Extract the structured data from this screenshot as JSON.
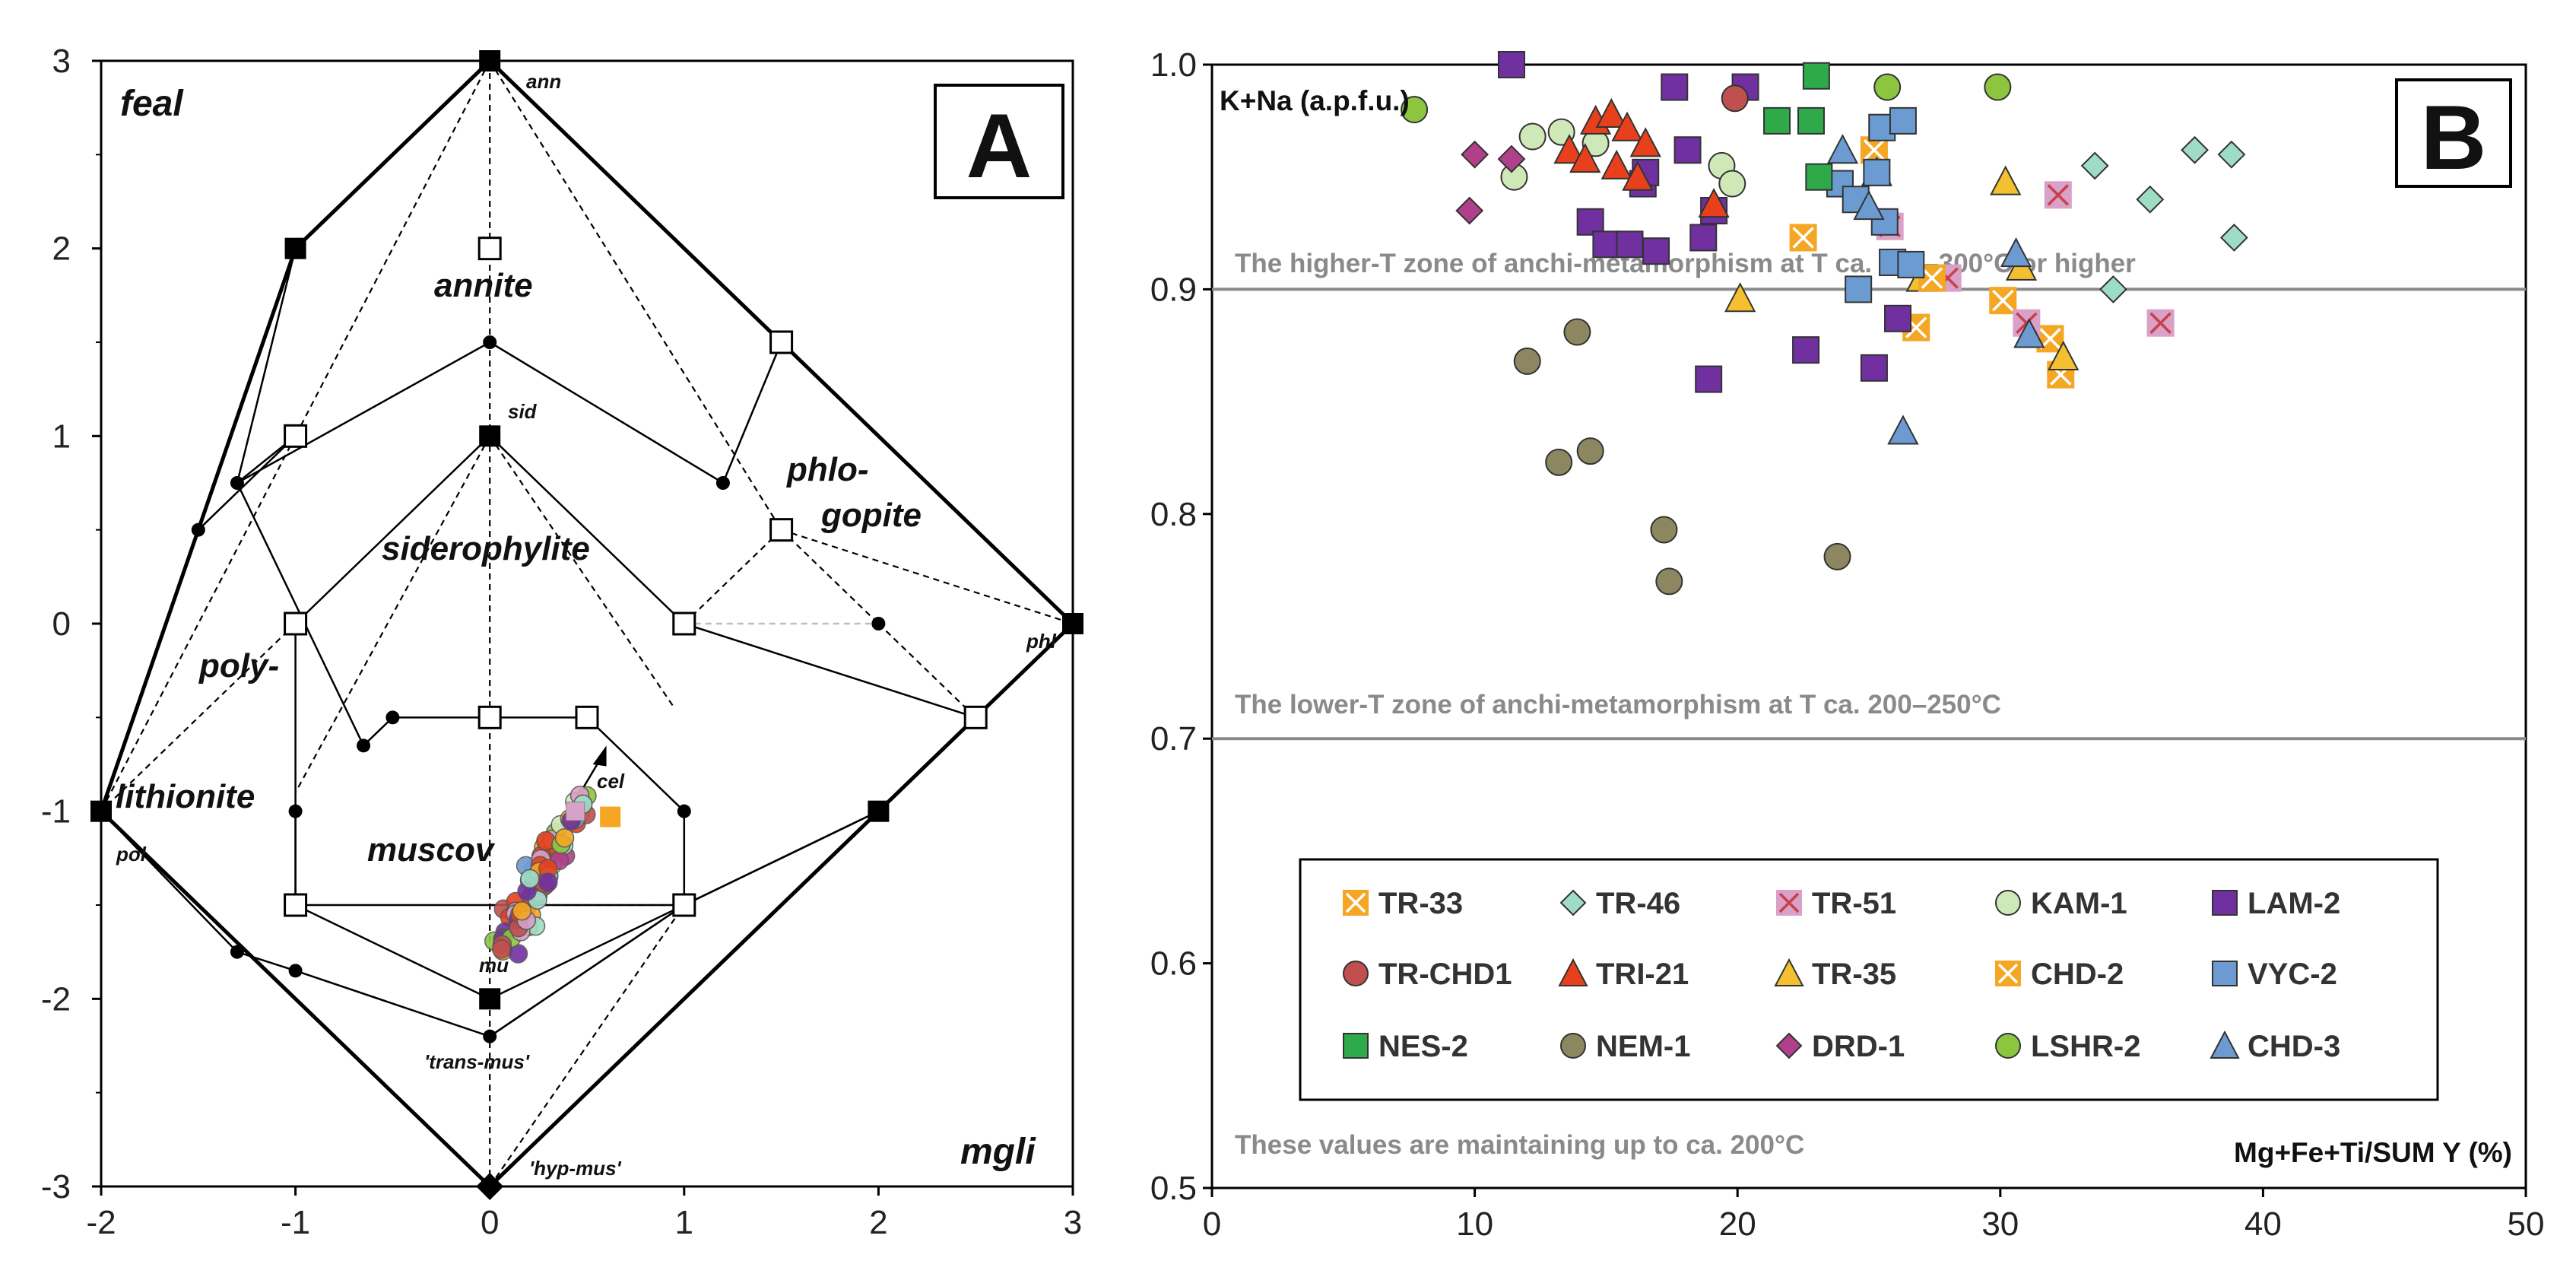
{
  "panel_a": {
    "label": "A",
    "corner_labels": {
      "feal": "feal",
      "mgli": "mgli"
    },
    "mineral_labels": {
      "annite": "annite",
      "siderophylite": "siderophylite",
      "phlogopite_1": "phlo-",
      "phlogopite_2": "gopite",
      "polylithionite_1": "poly-",
      "polylithionite_2": "lithionite",
      "muscovite": "muscov"
    },
    "endmember_labels": {
      "ann": "ann",
      "sid": "sid",
      "phl": "phl",
      "pol": "pol",
      "cel": "cel",
      "mu": "mu",
      "trans_mus": "'trans-mus'",
      "hyp_mus": "'hyp-mus'"
    }
  },
  "panel_b": {
    "label": "B",
    "ylabel": "K+Na (a.p.f.u.)",
    "xlabel": "Mg+Fe+Ti/SUM Y (%)",
    "zone_high": "The higher-T zone of anchi-metamorphism at T ca. 250–300°C or higher",
    "zone_low": "The lower-T zone of anchi-metamorphism at T ca. 200–250°C",
    "zone_base": "These values are maintaining up to ca. 200°C"
  },
  "chart_data": [
    {
      "type": "scatter",
      "title": "A",
      "xlabel": "",
      "ylabel": "",
      "xlim": [
        -2,
        3
      ],
      "ylim": [
        -3,
        3
      ],
      "xticks": [
        -2,
        -1,
        0,
        1,
        2,
        3
      ],
      "yticks": [
        3,
        2,
        1,
        0,
        -1,
        -2,
        -3
      ],
      "endmembers": [
        {
          "name": "ann",
          "x": 0,
          "y": 3
        },
        {
          "name": "sid",
          "x": 0,
          "y": 1
        },
        {
          "name": "phl",
          "x": 3,
          "y": 0
        },
        {
          "name": "pol",
          "x": -2,
          "y": -1
        },
        {
          "name": "mu",
          "x": 0,
          "y": -2
        },
        {
          "name": "hyp-mus",
          "x": 0,
          "y": -3
        }
      ],
      "sample_cluster": {
        "description": "muscovite compositions",
        "x_range": [
          0.05,
          0.65
        ],
        "y_range": [
          -1.8,
          -0.85
        ]
      }
    },
    {
      "type": "scatter",
      "title": "B",
      "xlabel": "Mg+Fe+Ti/SUM Y (%)",
      "ylabel": "K+Na (a.p.f.u.)",
      "xlim": [
        0,
        50
      ],
      "ylim": [
        0.5,
        1.0
      ],
      "xticks": [
        0,
        10,
        20,
        30,
        40,
        50
      ],
      "yticks": [
        1.0,
        0.9,
        0.8,
        0.7,
        0.6,
        0.5
      ],
      "hlines": [
        0.9,
        0.7
      ],
      "legend_position": "bottom-right inside",
      "series": [
        {
          "name": "TR-33",
          "marker": "xsquare",
          "color": "#f5a623",
          "points": [
            [
              22.5,
              0.923
            ],
            [
              25.2,
              0.962
            ],
            [
              26.8,
              0.883
            ],
            [
              30.1,
              0.895
            ],
            [
              31.9,
              0.878
            ],
            [
              32.3,
              0.862
            ]
          ]
        },
        {
          "name": "TR-46",
          "marker": "diamond",
          "color": "#9fdcc6",
          "points": [
            [
              33.6,
              0.955
            ],
            [
              34.3,
              0.9
            ],
            [
              35.7,
              0.94
            ],
            [
              37.4,
              0.962
            ],
            [
              38.8,
              0.96
            ],
            [
              38.9,
              0.923
            ]
          ]
        },
        {
          "name": "TR-51",
          "marker": "xsquare",
          "color": "#d9a0c8",
          "points": [
            [
              25.8,
              0.928
            ],
            [
              28.0,
              0.905
            ],
            [
              31.0,
              0.885
            ],
            [
              32.2,
              0.942
            ],
            [
              36.1,
              0.885
            ]
          ]
        },
        {
          "name": "KAM-1",
          "marker": "circle",
          "color": "#cfe8b8",
          "points": [
            [
              11.5,
              0.95
            ],
            [
              12.2,
              0.968
            ],
            [
              13.3,
              0.97
            ],
            [
              14.6,
              0.965
            ],
            [
              19.4,
              0.955
            ],
            [
              19.8,
              0.947
            ]
          ]
        },
        {
          "name": "LAM-2",
          "marker": "square",
          "color": "#7030a0",
          "points": [
            [
              11.4,
              1.0
            ],
            [
              14.4,
              0.93
            ],
            [
              15.0,
              0.92
            ],
            [
              15.9,
              0.92
            ],
            [
              16.4,
              0.947
            ],
            [
              16.5,
              0.952
            ],
            [
              16.9,
              0.917
            ],
            [
              17.6,
              0.99
            ],
            [
              18.1,
              0.962
            ],
            [
              18.7,
              0.923
            ],
            [
              19.1,
              0.935
            ],
            [
              20.3,
              0.99
            ],
            [
              18.9,
              0.86
            ],
            [
              22.6,
              0.873
            ],
            [
              25.2,
              0.865
            ],
            [
              26.1,
              0.887
            ]
          ]
        },
        {
          "name": "TR-CHD1",
          "marker": "circle",
          "color": "#c0504d",
          "points": [
            [
              19.9,
              0.985
            ]
          ]
        },
        {
          "name": "TRI-21",
          "marker": "triangle",
          "color": "#e8401c",
          "points": [
            [
              13.6,
              0.962
            ],
            [
              14.2,
              0.958
            ],
            [
              14.6,
              0.975
            ],
            [
              15.2,
              0.978
            ],
            [
              15.4,
              0.955
            ],
            [
              15.8,
              0.972
            ],
            [
              16.2,
              0.95
            ],
            [
              16.5,
              0.965
            ],
            [
              19.1,
              0.938
            ]
          ]
        },
        {
          "name": "TR-35",
          "marker": "triangle",
          "color": "#f5c030",
          "points": [
            [
              20.1,
              0.896
            ],
            [
              25.3,
              0.952
            ],
            [
              27.0,
              0.905
            ],
            [
              30.2,
              0.948
            ],
            [
              30.8,
              0.91
            ],
            [
              32.4,
              0.87
            ]
          ]
        },
        {
          "name": "CHD-2",
          "marker": "xsquare",
          "color": "#f5a623",
          "points": [
            [
              27.4,
              0.905
            ]
          ]
        },
        {
          "name": "VYC-2",
          "marker": "square",
          "color": "#6c9bd2",
          "points": [
            [
              23.9,
              0.947
            ],
            [
              24.5,
              0.94
            ],
            [
              25.3,
              0.952
            ],
            [
              25.5,
              0.972
            ],
            [
              26.3,
              0.975
            ],
            [
              24.6,
              0.9
            ],
            [
              25.6,
              0.93
            ],
            [
              25.9,
              0.912
            ],
            [
              26.6,
              0.911
            ]
          ]
        },
        {
          "name": "NES-2",
          "marker": "square",
          "color": "#2eaa4a",
          "points": [
            [
              21.5,
              0.975
            ],
            [
              22.8,
              0.975
            ],
            [
              23.0,
              0.995
            ],
            [
              23.1,
              0.95
            ]
          ]
        },
        {
          "name": "NEM-1",
          "marker": "circle",
          "color": "#8c8760",
          "points": [
            [
              12.0,
              0.868
            ],
            [
              13.9,
              0.881
            ],
            [
              13.2,
              0.823
            ],
            [
              14.4,
              0.828
            ],
            [
              17.2,
              0.793
            ],
            [
              17.4,
              0.77
            ],
            [
              23.8,
              0.781
            ]
          ]
        },
        {
          "name": "DRD-1",
          "marker": "diamond",
          "color": "#b0408a",
          "points": [
            [
              9.8,
              0.935
            ],
            [
              10.0,
              0.96
            ],
            [
              11.4,
              0.958
            ]
          ]
        },
        {
          "name": "LSHR-2",
          "marker": "circle",
          "color": "#8cc63f",
          "points": [
            [
              7.7,
              0.98
            ],
            [
              25.7,
              0.99
            ],
            [
              29.9,
              0.99
            ]
          ]
        },
        {
          "name": "CHD-3",
          "marker": "triangle",
          "color": "#6c9bd2",
          "points": [
            [
              24.0,
              0.962
            ],
            [
              25.0,
              0.937
            ],
            [
              26.3,
              0.837
            ],
            [
              30.6,
              0.916
            ],
            [
              31.1,
              0.88
            ]
          ]
        }
      ]
    }
  ]
}
